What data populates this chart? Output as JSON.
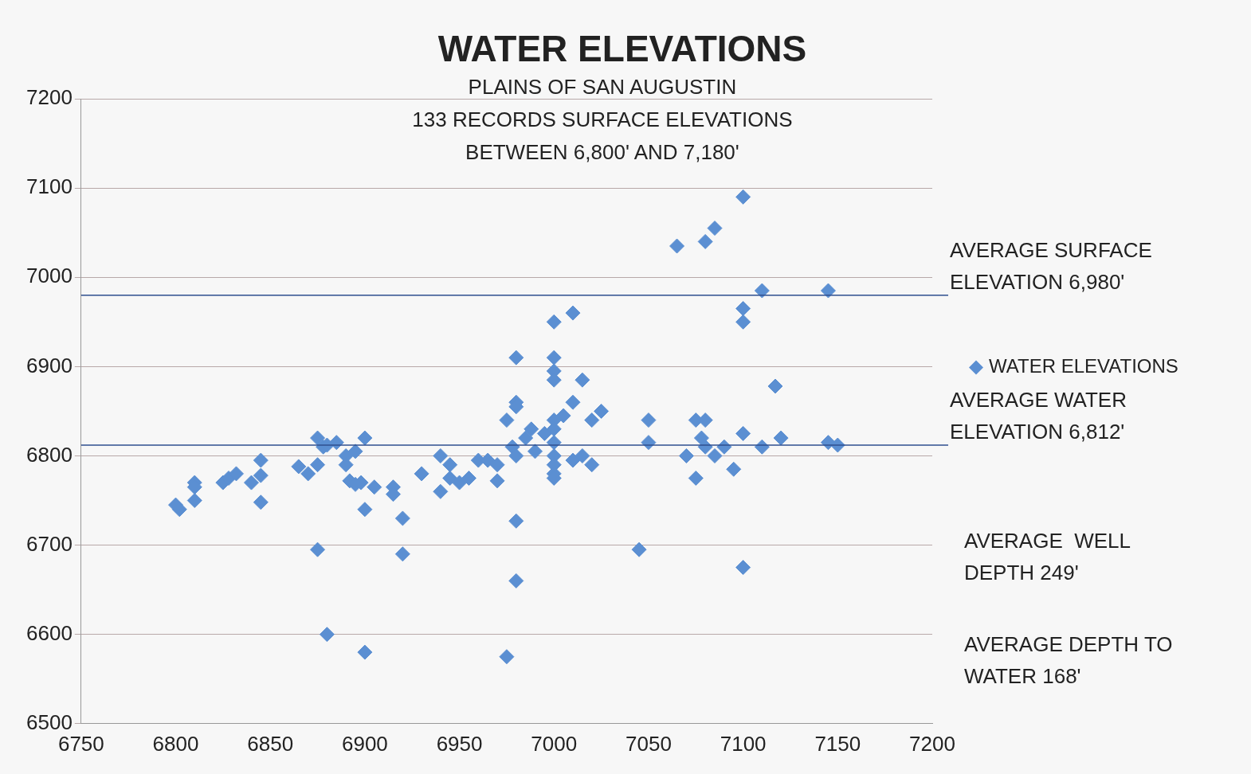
{
  "chart_data": {
    "type": "scatter",
    "title": "WATER ELEVATIONS",
    "subtitle": "PLAINS OF SAN AUGUSTIN\n133 RECORDS SURFACE ELEVATIONS\nBETWEEN 6,800' AND 7,180'",
    "series": [
      {
        "name": "WATER ELEVATIONS",
        "color": "#5b8fd2",
        "x": [
          6800,
          6802,
          6810,
          6810,
          6810,
          6825,
          6828,
          6832,
          6840,
          6845,
          6845,
          6845,
          6865,
          6870,
          6875,
          6875,
          6878,
          6880,
          6885,
          6890,
          6890,
          6892,
          6895,
          6900,
          6898,
          6900,
          6905,
          6895,
          6915,
          6915,
          6920,
          6920,
          6875,
          6880,
          6900,
          6930,
          6940,
          6940,
          6945,
          6945,
          6950,
          6955,
          6960,
          6965,
          6970,
          6970,
          6975,
          6980,
          6980,
          6980,
          6978,
          6980,
          6985,
          6988,
          6990,
          6995,
          6980,
          6980,
          6975,
          7000,
          7000,
          7000,
          7000,
          7000,
          7000,
          7000,
          7000,
          7000,
          7000,
          7000,
          7005,
          7010,
          7010,
          7015,
          7010,
          7015,
          7020,
          7020,
          7025,
          7045,
          7050,
          7050,
          7065,
          7070,
          7075,
          7075,
          7078,
          7080,
          7080,
          7080,
          7085,
          7085,
          7090,
          7095,
          7100,
          7100,
          7100,
          7100,
          7100,
          7110,
          7110,
          7117,
          7120,
          7145,
          7145,
          7150
        ],
        "values": [
          6745,
          6740,
          6770,
          6765,
          6750,
          6770,
          6775,
          6780,
          6770,
          6795,
          6778,
          6748,
          6788,
          6780,
          6820,
          6790,
          6810,
          6812,
          6815,
          6800,
          6790,
          6772,
          6805,
          6820,
          6770,
          6740,
          6765,
          6768,
          6765,
          6757,
          6730,
          6690,
          6695,
          6600,
          6580,
          6780,
          6800,
          6760,
          6790,
          6775,
          6770,
          6775,
          6795,
          6795,
          6790,
          6772,
          6840,
          6910,
          6860,
          6855,
          6810,
          6800,
          6820,
          6830,
          6805,
          6825,
          6727,
          6660,
          6575,
          6910,
          6895,
          6885,
          6950,
          6840,
          6830,
          6815,
          6800,
          6790,
          6780,
          6775,
          6845,
          6860,
          6960,
          6885,
          6795,
          6800,
          6790,
          6840,
          6850,
          6695,
          6840,
          6815,
          7035,
          6800,
          6775,
          6840,
          6820,
          6840,
          6810,
          7040,
          7055,
          6800,
          6810,
          6785,
          7090,
          6965,
          6950,
          6825,
          6675,
          6985,
          6810,
          6878,
          6820,
          6985,
          6815,
          6812
        ]
      }
    ],
    "xlim": [
      6750,
      7200
    ],
    "xticks": [
      6750,
      6800,
      6850,
      6900,
      6950,
      7000,
      7050,
      7100,
      7150,
      7200
    ],
    "ylim": [
      6500,
      7200
    ],
    "yticks": [
      6500,
      6600,
      6700,
      6800,
      6900,
      7000,
      7100,
      7200
    ],
    "grid": "y",
    "legend": "right",
    "marker": "diamond",
    "ref_lines": [
      {
        "axis": "y",
        "value": 6980,
        "label": "AVERAGE SURFACE ELEVATION 6,980'",
        "color": "#2f4f8f"
      },
      {
        "axis": "y",
        "value": 6812,
        "label": "AVERAGE WATER ELEVATION 6,812'",
        "color": "#2f4f8f"
      }
    ],
    "annotations": [
      "AVERAGE  WELL DEPTH 249'",
      "AVERAGE DEPTH TO WATER 168'"
    ]
  }
}
